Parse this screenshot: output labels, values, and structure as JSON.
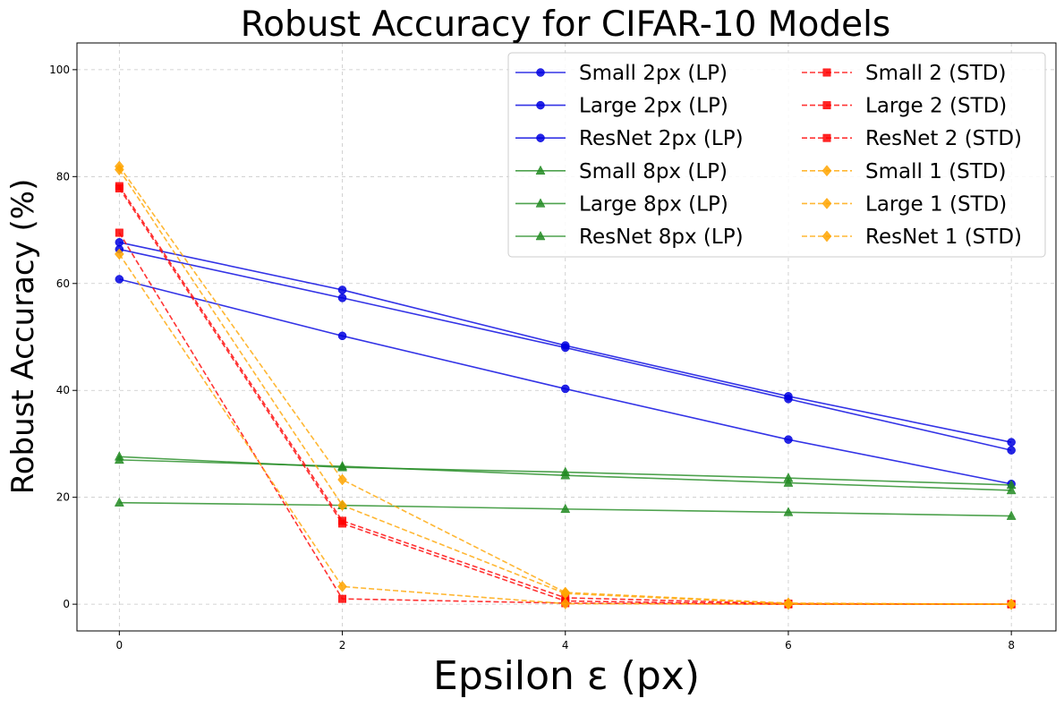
{
  "chart_data": {
    "type": "line",
    "title": "Robust Accuracy for CIFAR-10 Models",
    "xlabel": "Epsilon ε (px)",
    "ylabel": "Robust Accuracy (%)",
    "x": [
      0,
      2,
      4,
      6,
      8
    ],
    "xlim": [
      -0.38,
      8.4
    ],
    "ylim": [
      -5,
      105
    ],
    "xticks": [
      0,
      2,
      4,
      6,
      8
    ],
    "yticks": [
      0,
      20,
      40,
      60,
      80,
      100
    ],
    "grid": true,
    "legend_position": "top-right",
    "legend_columns": 2,
    "series": [
      {
        "name": "Small 2px (LP)",
        "color": "#0000e0",
        "linestyle": "solid",
        "marker": "circle",
        "values": [
          60.8,
          50.2,
          40.3,
          30.8,
          22.5
        ]
      },
      {
        "name": "Large 2px (LP)",
        "color": "#0000e0",
        "linestyle": "solid",
        "marker": "circle",
        "values": [
          67.7,
          58.8,
          48.4,
          38.9,
          30.3
        ]
      },
      {
        "name": "ResNet 2px (LP)",
        "color": "#0000e0",
        "linestyle": "solid",
        "marker": "circle",
        "values": [
          66.4,
          57.3,
          48.0,
          38.4,
          28.8
        ]
      },
      {
        "name": "Small 8px (LP)",
        "color": "#228b22",
        "linestyle": "solid",
        "marker": "triangle",
        "values": [
          19.0,
          18.5,
          17.8,
          17.2,
          16.5
        ]
      },
      {
        "name": "Large 8px (LP)",
        "color": "#228b22",
        "linestyle": "solid",
        "marker": "triangle",
        "values": [
          27.6,
          25.6,
          24.7,
          23.6,
          22.3
        ]
      },
      {
        "name": "ResNet 8px (LP)",
        "color": "#228b22",
        "linestyle": "solid",
        "marker": "triangle",
        "values": [
          27.0,
          25.8,
          24.1,
          22.7,
          21.3
        ]
      },
      {
        "name": "Small 2 (STD)",
        "color": "#ff0000",
        "linestyle": "dashed",
        "marker": "square",
        "values": [
          69.5,
          1.0,
          0.2,
          0.0,
          0.0
        ]
      },
      {
        "name": "Large 2 (STD)",
        "color": "#ff0000",
        "linestyle": "dashed",
        "marker": "square",
        "values": [
          78.2,
          15.6,
          1.2,
          0.1,
          0.0
        ]
      },
      {
        "name": "ResNet 2 (STD)",
        "color": "#ff0000",
        "linestyle": "dashed",
        "marker": "square",
        "values": [
          77.8,
          15.1,
          0.6,
          0.0,
          0.0
        ]
      },
      {
        "name": "Small 1 (STD)",
        "color": "#ffa500",
        "linestyle": "dashed",
        "marker": "diamond",
        "values": [
          65.5,
          3.3,
          0.1,
          0.0,
          0.0
        ]
      },
      {
        "name": "Large 1 (STD)",
        "color": "#ffa500",
        "linestyle": "dashed",
        "marker": "diamond",
        "values": [
          81.9,
          23.3,
          2.2,
          0.2,
          0.0
        ]
      },
      {
        "name": "ResNet 1 (STD)",
        "color": "#ffa500",
        "linestyle": "dashed",
        "marker": "diamond",
        "values": [
          81.3,
          18.5,
          2.0,
          0.1,
          0.0
        ]
      }
    ]
  }
}
